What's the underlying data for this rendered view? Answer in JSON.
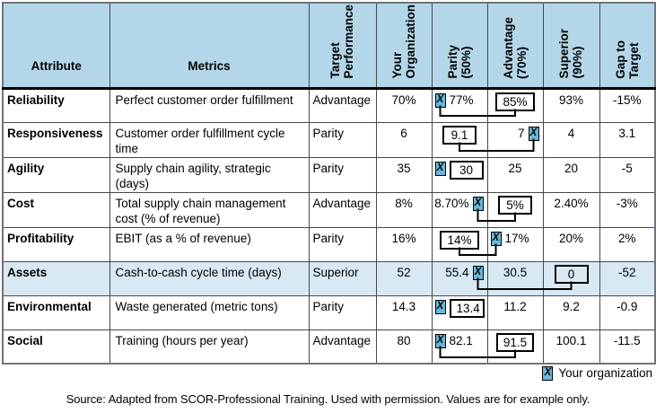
{
  "colors": {
    "header_bg": "#b3d7e8",
    "highlight_bg": "#d8e9f4",
    "marker_bg": "#68b7da",
    "grid": "#474747",
    "connector": "#000000"
  },
  "marker_glyph": "X",
  "header": {
    "attribute": "Attribute",
    "metrics": "Metrics",
    "rotated": [
      "Target\nPerformance",
      "Your\nOrganization",
      "Parity\n(50%)",
      "Advantage\n(70%)",
      "Superior\n(90%)",
      "Gap to\nTarget"
    ]
  },
  "chart_data": {
    "type": "table",
    "columns": [
      "Attribute",
      "Metrics",
      "Target Performance",
      "Your Organization",
      "Parity (50%)",
      "Advantage (70%)",
      "Superior (90%)",
      "Gap to Target"
    ],
    "rows": [
      {
        "attribute": "Reliability",
        "metric": "Perfect customer order fulfillment",
        "target": "Advantage",
        "your_org": "70%",
        "parity": {
          "text": "77%",
          "marker": "left",
          "align": "left"
        },
        "advantage": {
          "text": "85%",
          "boxed": true,
          "align": "center"
        },
        "superior": {
          "text": "93%",
          "align": "center"
        },
        "gap": "-15%",
        "connector": true,
        "highlight": false
      },
      {
        "attribute": "Responsiveness",
        "metric": "Customer order fulfillment cycle time",
        "target": "Parity",
        "your_org": "6",
        "parity": {
          "text": "9.1",
          "boxed": true,
          "align": "center"
        },
        "advantage": {
          "text": "7",
          "marker": "right",
          "align": "right"
        },
        "superior": {
          "text": "4",
          "align": "center"
        },
        "gap": "3.1",
        "connector": true,
        "highlight": false
      },
      {
        "attribute": "Agility",
        "metric": "Supply chain agility, strategic (days)",
        "target": "Parity",
        "your_org": "35",
        "parity": {
          "text": "30",
          "boxed": true,
          "marker": "left",
          "align": "left"
        },
        "advantage": {
          "text": "25",
          "align": "center"
        },
        "superior": {
          "text": "20",
          "align": "center"
        },
        "gap": "-5",
        "connector": false,
        "highlight": false
      },
      {
        "attribute": "Cost",
        "metric": "Total supply chain management cost (% of revenue)",
        "target": "Advantage",
        "your_org": "8%",
        "parity": {
          "text": "8.70%",
          "marker": "right",
          "align": "right"
        },
        "advantage": {
          "text": "5%",
          "boxed": true,
          "align": "center"
        },
        "superior": {
          "text": "2.40%",
          "align": "center"
        },
        "gap": "-3%",
        "connector": true,
        "highlight": false
      },
      {
        "attribute": "Profitability",
        "metric": "EBIT (as a % of revenue)",
        "target": "Parity",
        "your_org": "16%",
        "parity": {
          "text": "14%",
          "boxed": true,
          "align": "center"
        },
        "advantage": {
          "text": "17%",
          "marker": "left",
          "align": "left"
        },
        "superior": {
          "text": "20%",
          "align": "center"
        },
        "gap": "2%",
        "connector": true,
        "highlight": false
      },
      {
        "attribute": "Assets",
        "metric": "Cash-to-cash cycle time (days)",
        "target": "Superior",
        "your_org": "52",
        "parity": {
          "text": "55.4",
          "marker": "right",
          "align": "right"
        },
        "advantage": {
          "text": "30.5",
          "align": "center"
        },
        "superior": {
          "text": "0",
          "boxed": true,
          "align": "center"
        },
        "gap": "-52",
        "connector": true,
        "highlight": true
      },
      {
        "attribute": "Environmental",
        "metric": "Waste generated (metric tons)",
        "target": "Parity",
        "your_org": "14.3",
        "parity": {
          "text": "13.4",
          "boxed": true,
          "marker": "left",
          "align": "left"
        },
        "advantage": {
          "text": "11.2",
          "align": "center"
        },
        "superior": {
          "text": "9.2",
          "align": "center"
        },
        "gap": "-0.9",
        "connector": false,
        "highlight": false
      },
      {
        "attribute": "Social",
        "metric": "Training (hours per year)",
        "target": "Advantage",
        "your_org": "80",
        "parity": {
          "text": "82.1",
          "marker": "left",
          "align": "left"
        },
        "advantage": {
          "text": "91.5",
          "boxed": true,
          "align": "center"
        },
        "superior": {
          "text": "100.1",
          "align": "center"
        },
        "gap": "-11.5",
        "connector": true,
        "highlight": false
      }
    ]
  },
  "legend": {
    "label": "Your organization"
  },
  "source": "Source: Adapted from SCOR-Professional Training. Used with permission. Values are for example only."
}
